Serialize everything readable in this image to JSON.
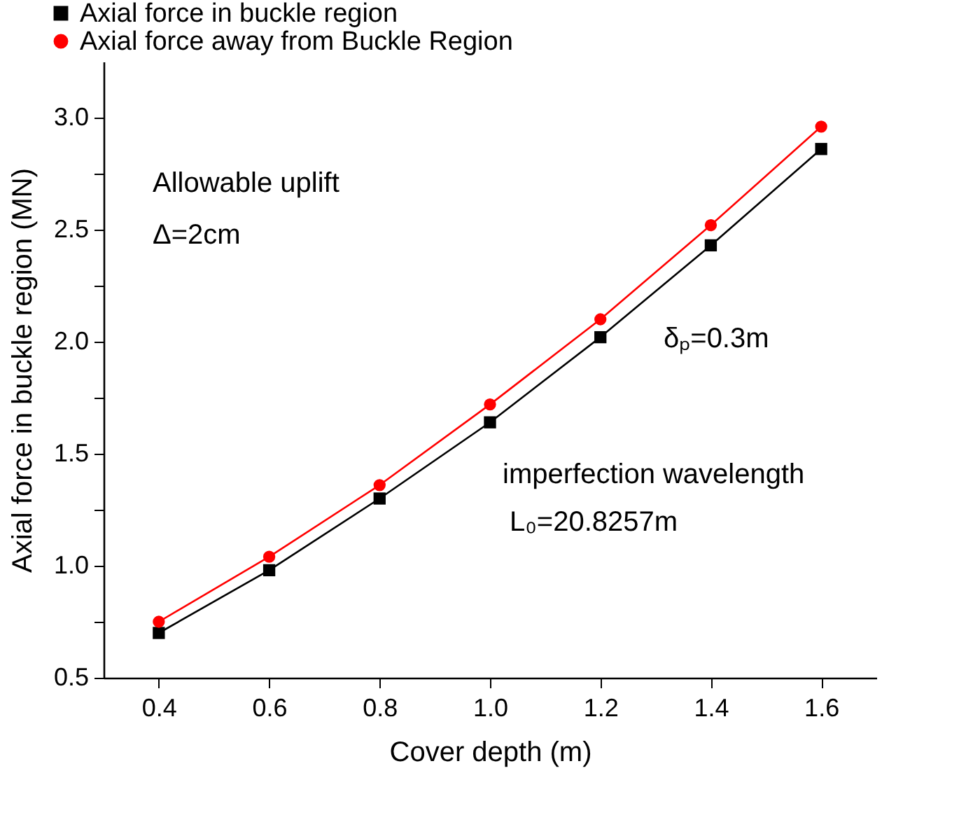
{
  "chart_data": {
    "type": "line",
    "xlabel": "Cover depth (m)",
    "ylabel": "Axial force in buckle region (MN)",
    "x": [
      0.4,
      0.6,
      0.8,
      1.0,
      1.2,
      1.4,
      1.6
    ],
    "series": [
      {
        "name": "Axial force in buckle region",
        "color": "#000000",
        "marker": "square",
        "values": [
          0.7,
          0.98,
          1.3,
          1.64,
          2.02,
          2.43,
          2.86
        ]
      },
      {
        "name": "Axial force away from Buckle Region",
        "color": "#ff0000",
        "marker": "circle",
        "values": [
          0.75,
          1.04,
          1.36,
          1.72,
          2.1,
          2.52,
          2.96
        ]
      }
    ],
    "xlim": [
      0.3,
      1.7
    ],
    "xticks": [
      {
        "value": 0.4,
        "label": "0.4"
      },
      {
        "value": 0.6,
        "label": "0.6"
      },
      {
        "value": 0.8,
        "label": "0.8"
      },
      {
        "value": 1.0,
        "label": "1.0"
      },
      {
        "value": 1.2,
        "label": "1.2"
      },
      {
        "value": 1.4,
        "label": "1.4"
      },
      {
        "value": 1.6,
        "label": "1.6"
      }
    ],
    "ylim": [
      0.5,
      3.25
    ],
    "yticks": [
      {
        "value": 0.5,
        "label": "0.5"
      },
      {
        "value": 0.75,
        "label": null
      },
      {
        "value": 1.0,
        "label": "1.0"
      },
      {
        "value": 1.25,
        "label": null
      },
      {
        "value": 1.5,
        "label": "1.5"
      },
      {
        "value": 1.75,
        "label": null
      },
      {
        "value": 2.0,
        "label": "2.0"
      },
      {
        "value": 2.25,
        "label": null
      },
      {
        "value": 2.5,
        "label": "2.5"
      },
      {
        "value": 2.75,
        "label": null
      },
      {
        "value": 3.0,
        "label": "3.0"
      }
    ],
    "grid": false,
    "legend": "top left",
    "annotations": [
      "Allowable uplift",
      "Δ=2cm",
      "δₚ=0.3m",
      "imperfection wavelength",
      "L₀=20.8257m"
    ]
  }
}
